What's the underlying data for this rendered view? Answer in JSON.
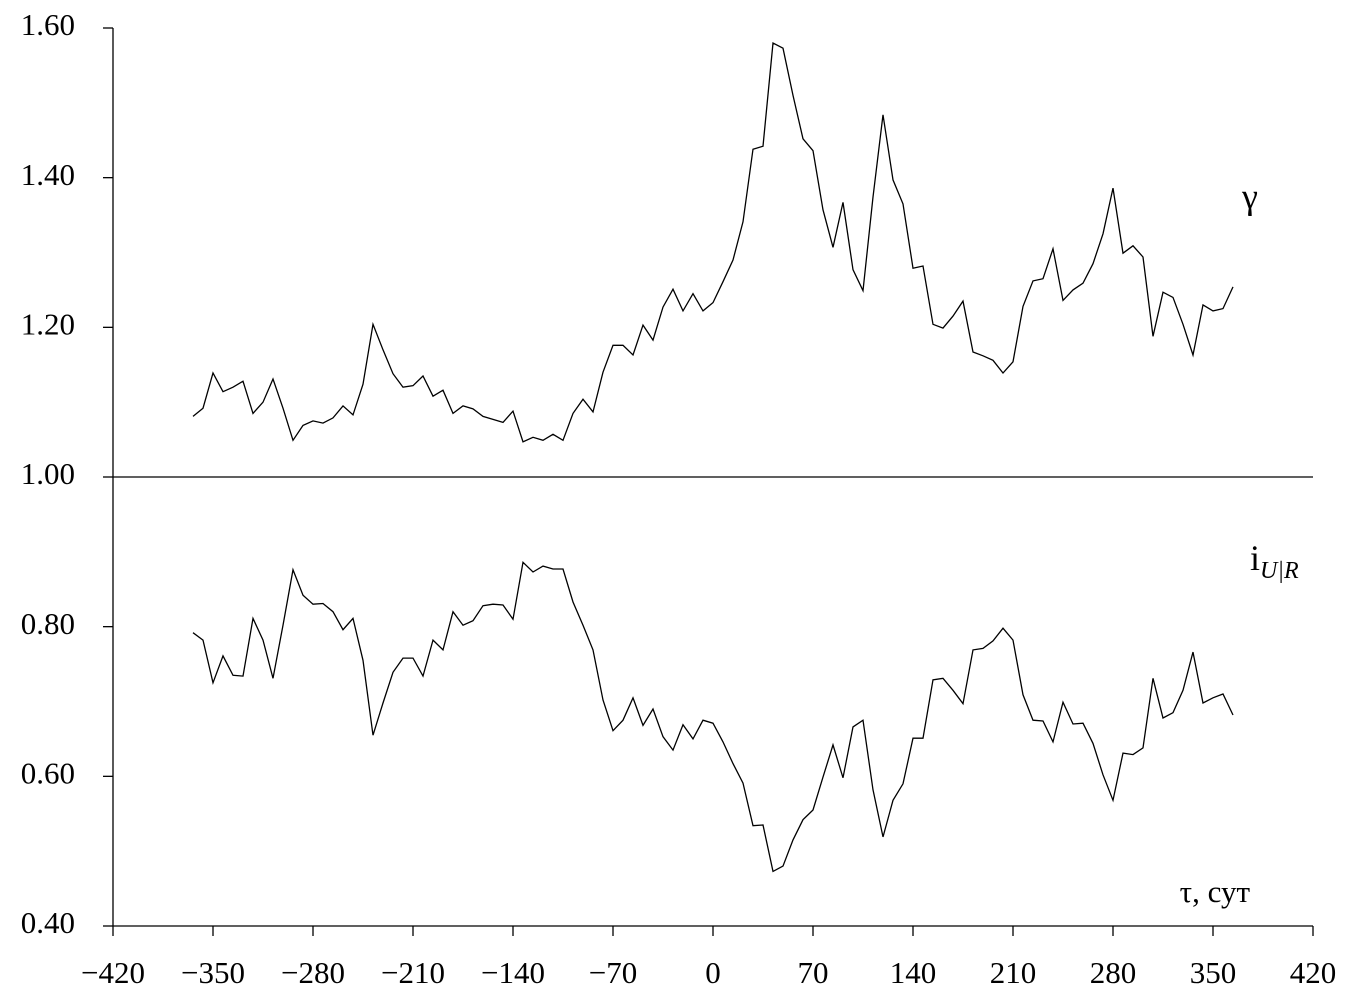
{
  "chart_data": {
    "type": "line",
    "x": [
      -364,
      -357,
      -350,
      -343,
      -336,
      -329,
      -322,
      -315,
      -308,
      -301,
      -294,
      -287,
      -280,
      -273,
      -266,
      -259,
      -252,
      -245,
      -238,
      -231,
      -224,
      -217,
      -210,
      -203,
      -196,
      -189,
      -182,
      -175,
      -168,
      -161,
      -154,
      -147,
      -140,
      -133,
      -126,
      -119,
      -112,
      -105,
      -98,
      -91,
      -84,
      -77,
      -70,
      -63,
      -56,
      -49,
      -42,
      -35,
      -28,
      -21,
      -14,
      -7,
      0,
      7,
      14,
      21,
      28,
      35,
      42,
      49,
      56,
      63,
      70,
      77,
      84,
      91,
      98,
      105,
      112,
      119,
      126,
      133,
      140,
      147,
      154,
      161,
      168,
      175,
      182,
      189,
      196,
      203,
      210,
      217,
      224,
      231,
      238,
      245,
      252,
      259,
      266,
      273,
      280,
      287,
      294,
      301,
      308,
      315,
      322,
      329,
      336,
      343,
      350,
      357,
      364
    ],
    "series": [
      {
        "name": "γ",
        "color": "#000000",
        "values": [
          1.081,
          1.092,
          1.139,
          1.114,
          1.12,
          1.128,
          1.085,
          1.1,
          1.131,
          1.092,
          1.049,
          1.069,
          1.075,
          1.072,
          1.079,
          1.095,
          1.083,
          1.124,
          1.204,
          1.17,
          1.138,
          1.12,
          1.122,
          1.135,
          1.108,
          1.116,
          1.085,
          1.095,
          1.091,
          1.081,
          1.077,
          1.073,
          1.088,
          1.047,
          1.053,
          1.049,
          1.057,
          1.049,
          1.085,
          1.104,
          1.087,
          1.14,
          1.176,
          1.176,
          1.163,
          1.203,
          1.183,
          1.227,
          1.251,
          1.222,
          1.245,
          1.222,
          1.233,
          1.261,
          1.29,
          1.341,
          1.438,
          1.442,
          1.58,
          1.573,
          1.51,
          1.452,
          1.436,
          1.357,
          1.307,
          1.367,
          1.277,
          1.249,
          1.374,
          1.484,
          1.397,
          1.365,
          1.279,
          1.282,
          1.204,
          1.199,
          1.215,
          1.235,
          1.167,
          1.162,
          1.156,
          1.139,
          1.154,
          1.228,
          1.262,
          1.265,
          1.305,
          1.236,
          1.25,
          1.259,
          1.285,
          1.325,
          1.386,
          1.299,
          1.309,
          1.294,
          1.188,
          1.247,
          1.24,
          1.204,
          1.163,
          1.23,
          1.222,
          1.225,
          1.254
        ]
      },
      {
        "name": "i",
        "name_sub": "U|R",
        "color": "#000000",
        "values": [
          0.792,
          0.782,
          0.725,
          0.761,
          0.735,
          0.734,
          0.811,
          0.782,
          0.731,
          0.802,
          0.876,
          0.842,
          0.83,
          0.831,
          0.82,
          0.796,
          0.811,
          0.755,
          0.655,
          0.698,
          0.739,
          0.758,
          0.758,
          0.734,
          0.782,
          0.769,
          0.82,
          0.802,
          0.808,
          0.828,
          0.83,
          0.829,
          0.81,
          0.886,
          0.873,
          0.881,
          0.877,
          0.877,
          0.833,
          0.802,
          0.769,
          0.702,
          0.661,
          0.675,
          0.705,
          0.668,
          0.69,
          0.653,
          0.635,
          0.669,
          0.65,
          0.675,
          0.671,
          0.646,
          0.617,
          0.591,
          0.534,
          0.535,
          0.473,
          0.48,
          0.515,
          0.542,
          0.555,
          0.599,
          0.642,
          0.598,
          0.666,
          0.675,
          0.582,
          0.519,
          0.568,
          0.59,
          0.651,
          0.651,
          0.729,
          0.731,
          0.715,
          0.697,
          0.769,
          0.771,
          0.781,
          0.798,
          0.782,
          0.709,
          0.675,
          0.674,
          0.646,
          0.699,
          0.67,
          0.671,
          0.644,
          0.602,
          0.568,
          0.631,
          0.629,
          0.638,
          0.731,
          0.678,
          0.685,
          0.715,
          0.766,
          0.698,
          0.705,
          0.71,
          0.682
        ]
      }
    ],
    "x_label": "τ,  сут",
    "xlim": [
      -420,
      420
    ],
    "xticks": [
      {
        "value": -420,
        "label": "−420"
      },
      {
        "value": -350,
        "label": "−350"
      },
      {
        "value": -280,
        "label": "−280"
      },
      {
        "value": -210,
        "label": "−210"
      },
      {
        "value": -140,
        "label": "−140"
      },
      {
        "value": -70,
        "label": "−70"
      },
      0,
      70,
      140,
      210,
      280,
      350,
      420
    ],
    "ylim": [
      0.4,
      1.6
    ],
    "yticks": [
      {
        "value": 0.4,
        "label": "0.40"
      },
      {
        "value": 0.6,
        "label": "0.60"
      },
      {
        "value": 0.8,
        "label": "0.80"
      },
      {
        "value": 1.0,
        "label": "1.00"
      },
      {
        "value": 1.2,
        "label": "1.20"
      },
      {
        "value": 1.4,
        "label": "1.40"
      },
      {
        "value": 1.6,
        "label": "1.60"
      }
    ],
    "hline": 1.0,
    "grid": false
  }
}
